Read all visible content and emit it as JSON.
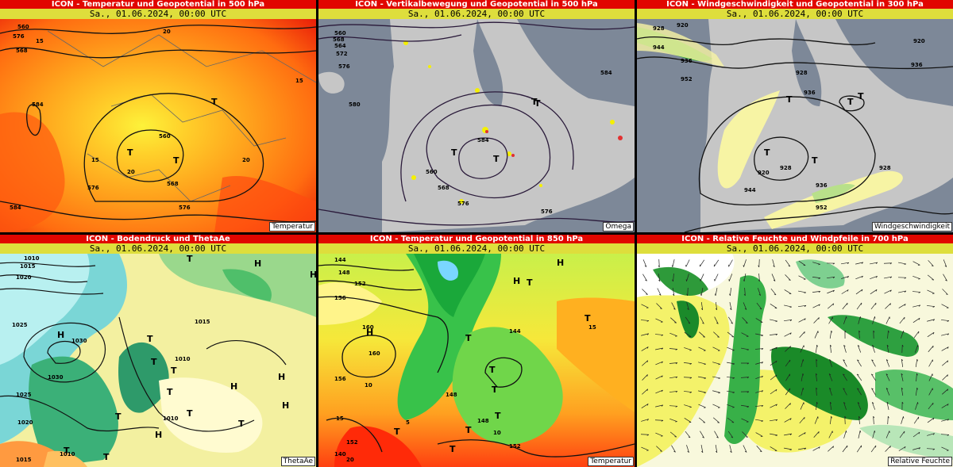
{
  "panels": [
    {
      "id": "p1",
      "title": "ICON - Temperatur und Geopotential in 500 hPa",
      "date": "Sa., 01.06.2024, 00:00 UTC",
      "tag": "Temperatur",
      "contour_labels": [
        "560",
        "576",
        "568",
        "584",
        "576",
        "560",
        "568",
        "576",
        "584",
        "20",
        "15",
        "15",
        "20",
        "20",
        "15"
      ],
      "pressure_marks": [
        "T",
        "T",
        "T"
      ]
    },
    {
      "id": "p2",
      "title": "ICON - Vertikalbewegung und Geopotential in 500 hPa",
      "date": "Sa., 01.06.2024, 00:00 UTC",
      "tag": "Omega",
      "contour_labels": [
        "560",
        "568",
        "564",
        "572",
        "576",
        "580",
        "584",
        "560",
        "568",
        "576",
        "576",
        "584"
      ],
      "pressure_marks": [
        "T",
        "T",
        "T",
        "T"
      ]
    },
    {
      "id": "p3",
      "title": "ICON - Windgeschwindigkeit und Geopotential in 300 hPa",
      "date": "Sa., 01.06.2024, 00:00 UTC",
      "tag": "Windgeschwindigkeit",
      "contour_labels": [
        "928",
        "920",
        "944",
        "936",
        "952",
        "928",
        "936",
        "920",
        "928",
        "936",
        "944",
        "952",
        "928",
        "920",
        "936"
      ],
      "pressure_marks": [
        "T",
        "T",
        "T",
        "T",
        "T"
      ]
    },
    {
      "id": "p4",
      "title": "ICON - Bodendruck und ThetaAe",
      "date": "Sa., 01.06.2024, 00:00 UTC",
      "tag": "ThetaAe",
      "contour_labels": [
        "1010",
        "1015",
        "1020",
        "1025",
        "1030",
        "1030",
        "1025",
        "1020",
        "1015",
        "1010",
        "1015",
        "1010",
        "1010"
      ],
      "pressure_marks": [
        "H",
        "T",
        "T",
        "H",
        "T",
        "T",
        "H",
        "T",
        "T",
        "H",
        "H",
        "T",
        "H",
        "T",
        "T",
        "T",
        "H"
      ]
    },
    {
      "id": "p5",
      "title": "ICON - Temperatur und Geopotential in 850 hPa",
      "date": "Sa., 01.06.2024, 00:00 UTC",
      "tag": "Temperatur",
      "contour_labels": [
        "144",
        "148",
        "152",
        "156",
        "160",
        "160",
        "156",
        "152",
        "148",
        "144",
        "148",
        "152",
        "140",
        "15",
        "10",
        "5",
        "10",
        "15",
        "20"
      ],
      "pressure_marks": [
        "H",
        "H",
        "H",
        "T",
        "T",
        "T",
        "T",
        "T",
        "T",
        "T",
        "T",
        "T"
      ]
    },
    {
      "id": "p6",
      "title": "ICON - Relative Feuchte und Windpfeile in 700 hPa",
      "date": "Sa., 01.06.2024, 00:00 UTC",
      "tag": "Relative Feuchte"
    }
  ],
  "colors": {
    "title_bg": "#e10600",
    "date_bg": "#dede3c",
    "ocean_gray": "#7d8898",
    "land_gray": "#c6c6c6"
  }
}
